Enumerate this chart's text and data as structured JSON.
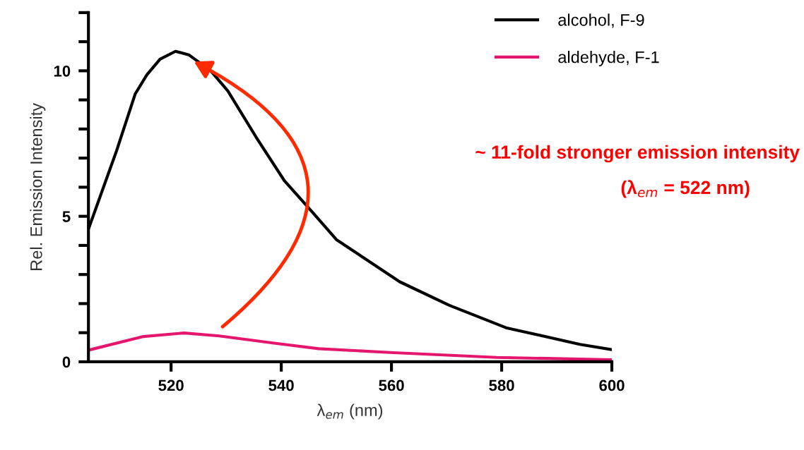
{
  "chart_data": {
    "type": "line",
    "xlabel": "λ$_{em}$ (nm)",
    "ylabel": "Rel. Emission Intensity",
    "series": [
      {
        "name": "alcohol, F-9",
        "color": "#000000",
        "x": [
          505,
          510.1,
          513.5,
          515.6,
          518.0,
          520.8,
          523.2,
          527.2,
          530.3,
          535.4,
          540.5,
          545.6,
          550,
          561.5,
          570.5,
          580.8,
          594.2,
          600
        ],
        "values": [
          4.56,
          7.25,
          9.21,
          9.86,
          10.4,
          10.67,
          10.55,
          10.0,
          9.31,
          7.73,
          6.24,
          5.15,
          4.2,
          2.75,
          1.94,
          1.17,
          0.6,
          0.42
        ]
      },
      {
        "name": "aldehyde, F-1",
        "color": "#e5166e",
        "x": [
          505,
          515.0,
          522.4,
          528.7,
          538.7,
          546.8,
          559.7,
          579.1,
          600
        ],
        "values": [
          0.4,
          0.87,
          0.99,
          0.89,
          0.64,
          0.45,
          0.32,
          0.15,
          0.07
        ]
      }
    ],
    "xlim": [
      505,
      600
    ],
    "xticks": [
      520,
      540,
      560,
      580,
      600
    ],
    "ylim": [
      0,
      12
    ],
    "yticks": [
      0,
      {
        "value": 1,
        "label": null
      },
      {
        "value": 2,
        "label": null
      },
      {
        "value": 3,
        "label": null
      },
      {
        "value": 4,
        "label": null
      },
      5,
      {
        "value": 6,
        "label": null
      },
      {
        "value": 7,
        "label": null
      },
      {
        "value": 8,
        "label": null
      },
      {
        "value": 9,
        "label": null
      },
      10,
      {
        "value": 11,
        "label": null
      },
      {
        "value": 12,
        "label": null
      }
    ],
    "annotations": [
      "~ 11-fold stronger emission intensity",
      "(λ$_{em}$ = 522 nm)"
    ],
    "legend": "top right",
    "grid": false,
    "marker": "none",
    "line_style": "solid"
  }
}
